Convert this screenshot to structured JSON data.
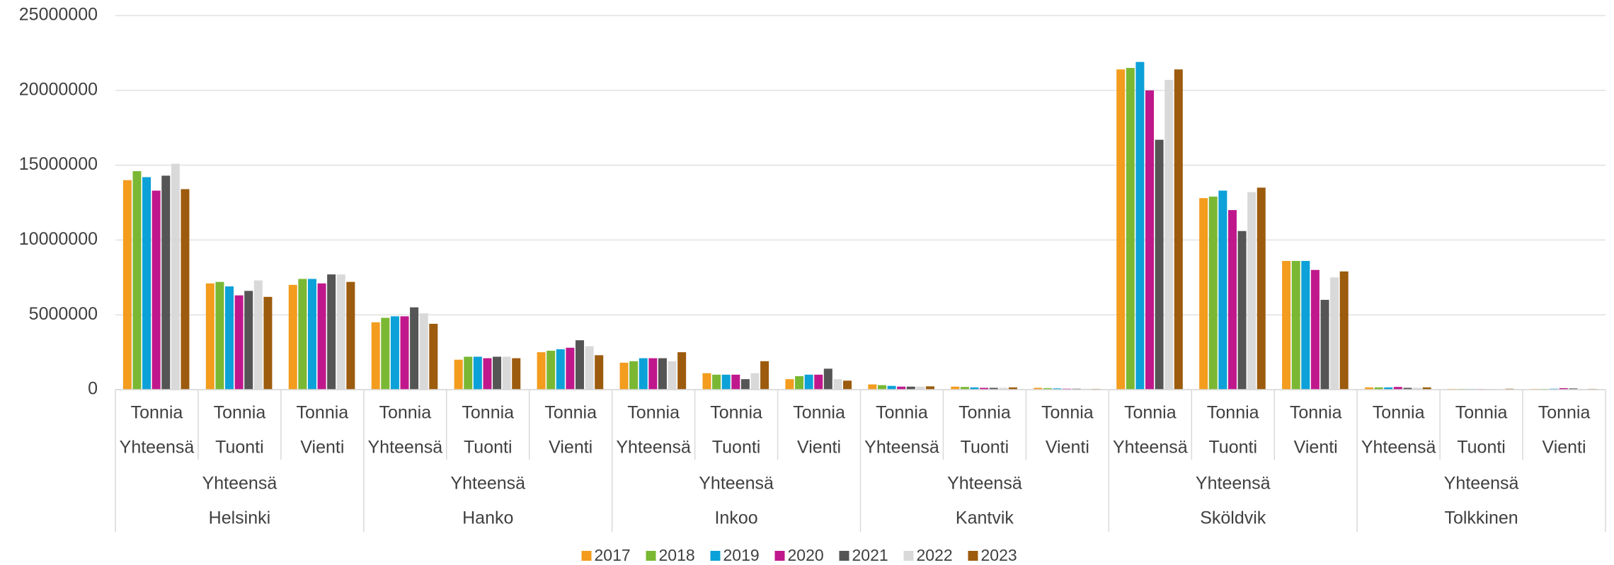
{
  "chart_data": {
    "type": "bar",
    "categories": [
      {
        "unit": "Tonnia",
        "flow": "Yhteensä"
      },
      {
        "unit": "Tonnia",
        "flow": "Tuonti"
      },
      {
        "unit": "Tonnia",
        "flow": "Vienti"
      },
      {
        "unit": "Tonnia",
        "flow": "Yhteensä"
      },
      {
        "unit": "Tonnia",
        "flow": "Tuonti"
      },
      {
        "unit": "Tonnia",
        "flow": "Vienti"
      },
      {
        "unit": "Tonnia",
        "flow": "Yhteensä"
      },
      {
        "unit": "Tonnia",
        "flow": "Tuonti"
      },
      {
        "unit": "Tonnia",
        "flow": "Vienti"
      },
      {
        "unit": "Tonnia",
        "flow": "Yhteensä"
      },
      {
        "unit": "Tonnia",
        "flow": "Tuonti"
      },
      {
        "unit": "Tonnia",
        "flow": "Vienti"
      },
      {
        "unit": "Tonnia",
        "flow": "Yhteensä"
      },
      {
        "unit": "Tonnia",
        "flow": "Tuonti"
      },
      {
        "unit": "Tonnia",
        "flow": "Vienti"
      },
      {
        "unit": "Tonnia",
        "flow": "Yhteensä"
      },
      {
        "unit": "Tonnia",
        "flow": "Tuonti"
      },
      {
        "unit": "Tonnia",
        "flow": "Vienti"
      }
    ],
    "groups": [
      {
        "label": "Yhteensä",
        "name": "Helsinki"
      },
      {
        "label": "Yhteensä",
        "name": "Hanko"
      },
      {
        "label": "Yhteensä",
        "name": "Inkoo"
      },
      {
        "label": "Yhteensä",
        "name": "Kantvik"
      },
      {
        "label": "Yhteensä",
        "name": "Sköldvik"
      },
      {
        "label": "Yhteensä",
        "name": "Tolkkinen"
      }
    ],
    "series": [
      {
        "name": "2017",
        "color": "#f39c1e",
        "values": [
          14000000,
          7100000,
          7000000,
          4500000,
          2000000,
          2500000,
          1800000,
          1100000,
          700000,
          350000,
          200000,
          120000,
          21400000,
          12800000,
          8600000,
          150000,
          50000,
          50000
        ]
      },
      {
        "name": "2018",
        "color": "#7ab834",
        "values": [
          14600000,
          7200000,
          7400000,
          4800000,
          2200000,
          2600000,
          1900000,
          1000000,
          900000,
          300000,
          180000,
          100000,
          21500000,
          12900000,
          8600000,
          150000,
          50000,
          50000
        ]
      },
      {
        "name": "2019",
        "color": "#0ca1d8",
        "values": [
          14200000,
          6900000,
          7400000,
          4900000,
          2200000,
          2700000,
          2100000,
          1000000,
          1000000,
          250000,
          150000,
          80000,
          21900000,
          13300000,
          8600000,
          150000,
          40000,
          60000
        ]
      },
      {
        "name": "2020",
        "color": "#c0188c",
        "values": [
          13300000,
          6300000,
          7100000,
          4900000,
          2100000,
          2800000,
          2100000,
          1000000,
          1000000,
          200000,
          120000,
          60000,
          20000000,
          12000000,
          8000000,
          180000,
          40000,
          100000
        ]
      },
      {
        "name": "2021",
        "color": "#555555",
        "values": [
          14300000,
          6600000,
          7700000,
          5500000,
          2200000,
          3300000,
          2100000,
          700000,
          1400000,
          200000,
          120000,
          60000,
          16700000,
          10600000,
          6000000,
          120000,
          30000,
          80000
        ]
      },
      {
        "name": "2022",
        "color": "#d9d9d9",
        "values": [
          15100000,
          7300000,
          7700000,
          5100000,
          2200000,
          2900000,
          1900000,
          1100000,
          700000,
          200000,
          120000,
          60000,
          20700000,
          13200000,
          7500000,
          120000,
          30000,
          50000
        ]
      },
      {
        "name": "2023",
        "color": "#9c5b0d",
        "values": [
          13400000,
          6200000,
          7200000,
          4400000,
          2100000,
          2300000,
          2500000,
          1900000,
          600000,
          220000,
          150000,
          50000,
          21400000,
          13500000,
          7900000,
          150000,
          60000,
          50000
        ]
      }
    ],
    "ylim": [
      0,
      25000000
    ],
    "yticks": [
      0,
      5000000,
      10000000,
      15000000,
      20000000,
      25000000
    ],
    "grid": true,
    "legend": "bottom"
  }
}
